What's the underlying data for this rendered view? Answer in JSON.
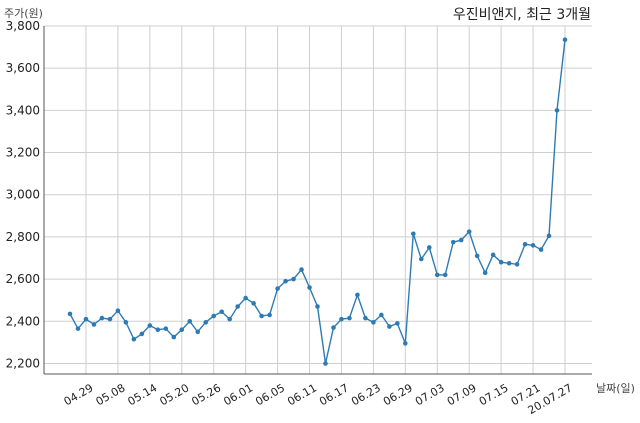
{
  "chart_data": {
    "type": "line",
    "title": "우진비앤지, 최근 3개월",
    "ylabel": "주가(원)",
    "xlabel": "날짜(일)",
    "ylim": [
      2150,
      3800
    ],
    "yticks": [
      2200,
      2400,
      2600,
      2800,
      3000,
      3200,
      3400,
      3600,
      3800
    ],
    "ytick_labels": [
      "2,200",
      "2,400",
      "2,600",
      "2,800",
      "3,000",
      "3,200",
      "3,400",
      "3,600",
      "3,800"
    ],
    "xticks": [
      {
        "index": 2,
        "label": "04.29"
      },
      {
        "index": 6,
        "label": "05.08"
      },
      {
        "index": 10,
        "label": "05.14"
      },
      {
        "index": 14,
        "label": "05.20"
      },
      {
        "index": 18,
        "label": "05.26"
      },
      {
        "index": 22,
        "label": "06.01"
      },
      {
        "index": 26,
        "label": "06.05"
      },
      {
        "index": 30,
        "label": "06.11"
      },
      {
        "index": 34,
        "label": "06.17"
      },
      {
        "index": 38,
        "label": "06.23"
      },
      {
        "index": 42,
        "label": "06.29"
      },
      {
        "index": 46,
        "label": "07.03"
      },
      {
        "index": 50,
        "label": "07.09"
      },
      {
        "index": 54,
        "label": "07.15"
      },
      {
        "index": 58,
        "label": "07.21"
      },
      {
        "index": 62,
        "label": "20.07.27"
      }
    ],
    "grid": true,
    "series": [
      {
        "color": "#2e7bb4",
        "values": [
          2435,
          2365,
          2410,
          2385,
          2415,
          2410,
          2450,
          2395,
          2315,
          2340,
          2380,
          2360,
          2365,
          2325,
          2360,
          2400,
          2350,
          2395,
          2425,
          2445,
          2410,
          2470,
          2510,
          2485,
          2425,
          2430,
          2555,
          2590,
          2600,
          2645,
          2560,
          2470,
          2200,
          2370,
          2410,
          2415,
          2525,
          2415,
          2395,
          2430,
          2375,
          2390,
          2295,
          2815,
          2695,
          2750,
          2620,
          2620,
          2775,
          2785,
          2825,
          2710,
          2630,
          2715,
          2680,
          2675,
          2670,
          2765,
          2760,
          2740,
          2805,
          3400,
          3735
        ]
      }
    ]
  }
}
